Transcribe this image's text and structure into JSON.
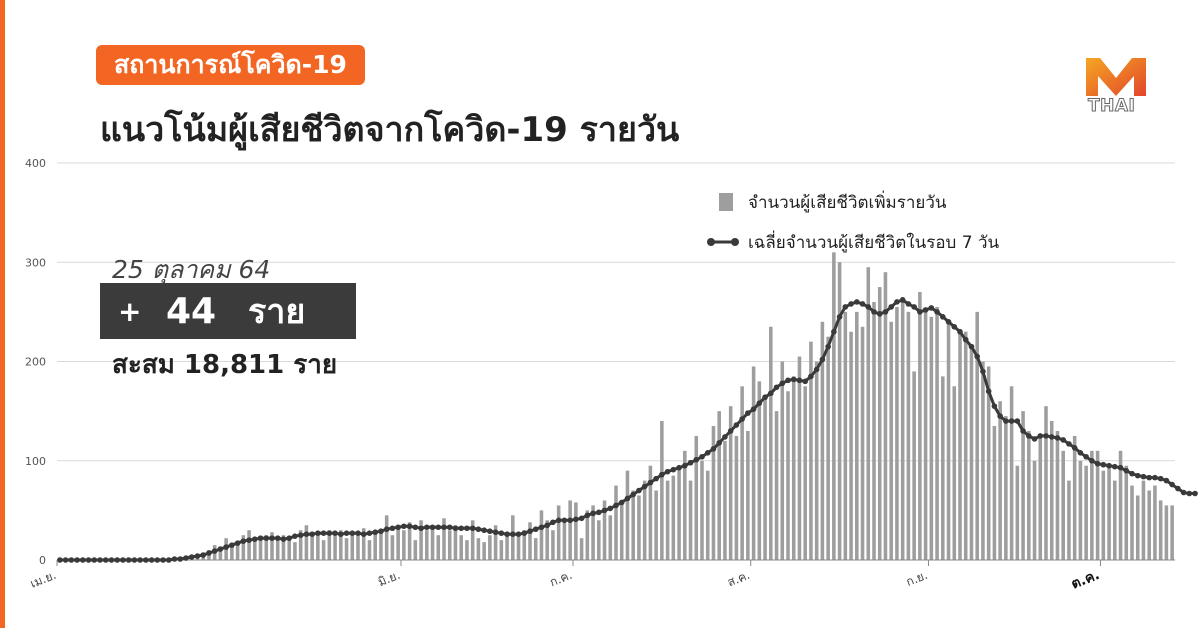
{
  "header": {
    "badge_text": "สถานการณ์โควิด-19",
    "title": "แนวโน้มผู้เสียชีวิตจากโควิด-19 รายวัน",
    "logo_text": "THAI"
  },
  "summary": {
    "date": "25 ตุลาคม 64",
    "plus_sign": "+",
    "daily_value": "44",
    "daily_unit": "ราย",
    "cumulative_text": "สะสม 18,811 ราย"
  },
  "colors": {
    "accent": "#F26522",
    "bars": "#9e9e9e",
    "line": "#3a3a3a",
    "grid": "#d9d9d9",
    "text": "#222222"
  },
  "chart_data": {
    "type": "bar",
    "ylim": [
      0,
      400
    ],
    "yticks": [
      "0",
      "100",
      "200",
      "300",
      "400"
    ],
    "x_tick_labels": [
      "เม.ย.",
      "มิ.ย.",
      "ก.ค.",
      "ส.ค.",
      "ก.ย.",
      "ต.ค."
    ],
    "x_tick_days": [
      0,
      60,
      90,
      121,
      152,
      182
    ],
    "legend": {
      "position": "top-right",
      "bar_label": "จำนวนผู้เสียชีวิตเพิ่มรายวัน",
      "line_label": "เฉลี่ยจำนวนผู้เสียชีวิตในรอบ 7 วัน"
    },
    "series": [
      {
        "name": "จำนวนผู้เสียชีวิตเพิ่มรายวัน",
        "type": "bar",
        "values": [
          0,
          0,
          0,
          0,
          0,
          0,
          0,
          0,
          0,
          0,
          0,
          0,
          0,
          0,
          0,
          0,
          0,
          0,
          0,
          0,
          1,
          2,
          2,
          3,
          4,
          5,
          10,
          15,
          12,
          22,
          15,
          18,
          25,
          30,
          20,
          22,
          25,
          28,
          20,
          25,
          22,
          18,
          30,
          35,
          25,
          28,
          20,
          30,
          25,
          30,
          22,
          28,
          25,
          32,
          20,
          30,
          28,
          45,
          25,
          35,
          30,
          38,
          20,
          40,
          30,
          35,
          25,
          42,
          30,
          35,
          25,
          20,
          40,
          22,
          18,
          25,
          35,
          20,
          28,
          45,
          25,
          30,
          38,
          22,
          50,
          40,
          30,
          55,
          40,
          60,
          58,
          22,
          50,
          55,
          40,
          60,
          45,
          75,
          60,
          90,
          70,
          65,
          80,
          95,
          70,
          140,
          80,
          85,
          95,
          110,
          80,
          125,
          100,
          90,
          135,
          150,
          120,
          155,
          125,
          175,
          130,
          195,
          180,
          165,
          235,
          150,
          200,
          170,
          185,
          205,
          175,
          220,
          200,
          240,
          225,
          310,
          300,
          250,
          230,
          250,
          235,
          295,
          260,
          275,
          290,
          240,
          255,
          265,
          250,
          190,
          270,
          250,
          245,
          255,
          185,
          240,
          175,
          230,
          230,
          215,
          250,
          200,
          195,
          135,
          160,
          145,
          175,
          95,
          150,
          130,
          100,
          125,
          155,
          140,
          130,
          110,
          80,
          125,
          100,
          95,
          110,
          110,
          90,
          95,
          80,
          110,
          95,
          75,
          65,
          80,
          70,
          75,
          60,
          55,
          55
        ]
      },
      {
        "name": "เฉลี่ยจำนวนผู้เสียชีวิตในรอบ 7 วัน",
        "type": "line",
        "values": [
          0,
          0,
          0,
          0,
          0,
          0,
          0,
          0,
          0,
          0,
          0,
          0,
          0,
          0,
          0,
          0,
          0,
          0,
          0,
          0,
          1,
          1,
          2,
          3,
          4,
          5,
          7,
          9,
          11,
          13,
          15,
          17,
          19,
          20,
          21,
          22,
          22,
          22,
          22,
          21,
          22,
          24,
          25,
          26,
          26,
          27,
          27,
          27,
          27,
          26,
          27,
          27,
          27,
          26,
          27,
          28,
          29,
          31,
          32,
          33,
          34,
          34,
          33,
          32,
          33,
          33,
          33,
          33,
          33,
          32,
          32,
          32,
          32,
          31,
          30,
          29,
          28,
          27,
          26,
          26,
          26,
          27,
          29,
          31,
          33,
          35,
          38,
          40,
          40,
          40,
          41,
          42,
          45,
          47,
          48,
          50,
          52,
          55,
          58,
          62,
          66,
          70,
          74,
          78,
          82,
          86,
          89,
          91,
          93,
          95,
          98,
          101,
          104,
          108,
          112,
          118,
          124,
          130,
          136,
          142,
          148,
          152,
          158,
          164,
          168,
          174,
          178,
          181,
          182,
          181,
          180,
          185,
          192,
          202,
          215,
          230,
          245,
          255,
          258,
          260,
          258,
          255,
          250,
          248,
          250,
          255,
          260,
          262,
          258,
          255,
          250,
          252,
          254,
          250,
          245,
          240,
          235,
          230,
          222,
          215,
          205,
          190,
          170,
          155,
          145,
          140,
          140,
          140,
          130,
          125,
          122,
          125,
          125,
          124,
          123,
          121,
          117,
          113,
          108,
          104,
          100,
          97,
          96,
          95,
          94,
          93,
          90,
          87,
          85,
          84,
          83,
          83,
          82,
          80,
          76,
          72,
          68,
          67,
          67
        ]
      }
    ]
  }
}
